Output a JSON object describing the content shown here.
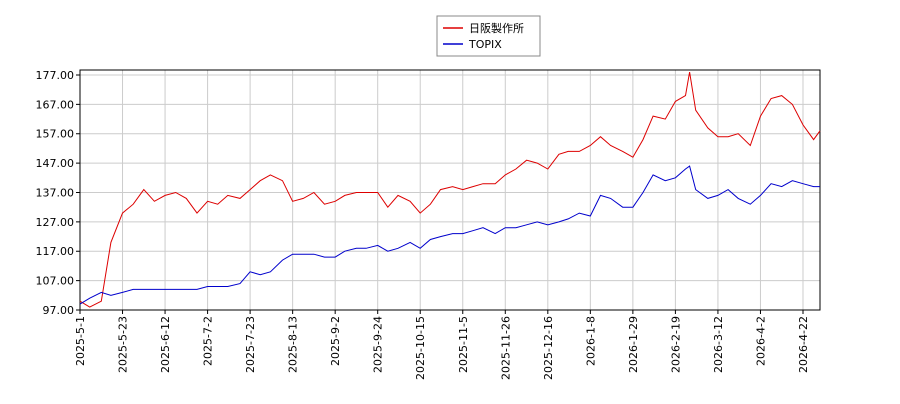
{
  "chart_data": {
    "type": "line",
    "x": [
      "2025-5-1",
      "2025-5-6",
      "2025-5-12",
      "2025-5-17",
      "2025-5-23",
      "2025-5-28",
      "2025-6-2",
      "2025-6-7",
      "2025-6-12",
      "2025-6-17",
      "2025-6-22",
      "2025-6-27",
      "2025-7-2",
      "2025-7-7",
      "2025-7-12",
      "2025-7-18",
      "2025-7-23",
      "2025-7-28",
      "2025-8-2",
      "2025-8-8",
      "2025-8-13",
      "2025-8-18",
      "2025-8-23",
      "2025-8-28",
      "2025-9-2",
      "2025-9-7",
      "2025-9-13",
      "2025-9-18",
      "2025-9-24",
      "2025-9-29",
      "2025-10-4",
      "2025-10-10",
      "2025-10-15",
      "2025-10-20",
      "2025-10-25",
      "2025-10-31",
      "2025-11-5",
      "2025-11-10",
      "2025-11-15",
      "2025-11-21",
      "2025-11-26",
      "2025-12-1",
      "2025-12-6",
      "2025-12-11",
      "2025-12-16",
      "2025-12-22",
      "2025-12-27",
      "2026-1-2",
      "2026-1-8",
      "2026-1-13",
      "2026-1-18",
      "2026-1-24",
      "2026-1-29",
      "2026-2-3",
      "2026-2-8",
      "2026-2-14",
      "2026-2-19",
      "2026-2-24",
      "2026-2-26",
      "2026-3-1",
      "2026-3-7",
      "2026-3-12",
      "2026-3-17",
      "2026-3-22",
      "2026-3-28",
      "2026-4-2",
      "2026-4-7",
      "2026-4-12",
      "2026-4-17",
      "2026-4-22",
      "2026-4-27",
      "2026-4-30"
    ],
    "series": [
      {
        "name": "日阪製作所",
        "color": "#dd0000",
        "values": [
          100,
          98,
          100,
          120,
          130,
          133,
          138,
          134,
          136,
          137,
          135,
          130,
          134,
          133,
          136,
          135,
          138,
          141,
          143,
          141,
          134,
          135,
          137,
          133,
          134,
          136,
          137,
          137,
          137,
          132,
          136,
          134,
          130,
          133,
          138,
          139,
          138,
          139,
          140,
          140,
          143,
          145,
          148,
          147,
          145,
          150,
          151,
          151,
          153,
          156,
          153,
          151,
          149,
          155,
          163,
          162,
          168,
          170,
          178,
          165,
          159,
          156,
          156,
          157,
          153,
          163,
          169,
          170,
          167,
          160,
          155,
          158
        ]
      },
      {
        "name": "TOPIX",
        "color": "#0000cc",
        "values": [
          99,
          101,
          103,
          102,
          103,
          104,
          104,
          104,
          104,
          104,
          104,
          104,
          105,
          105,
          105,
          106,
          110,
          109,
          110,
          114,
          116,
          116,
          116,
          115,
          115,
          117,
          118,
          118,
          119,
          117,
          118,
          120,
          118,
          121,
          122,
          123,
          123,
          124,
          125,
          123,
          125,
          125,
          126,
          127,
          126,
          127,
          128,
          130,
          129,
          136,
          135,
          132,
          132,
          137,
          143,
          141,
          142,
          145,
          146,
          138,
          135,
          136,
          138,
          135,
          133,
          136,
          140,
          139,
          141,
          140,
          139,
          139
        ]
      }
    ],
    "xticks": [
      "2025-5-1",
      "2025-5-23",
      "2025-6-12",
      "2025-7-2",
      "2025-7-23",
      "2025-8-13",
      "2025-9-2",
      "2025-9-24",
      "2025-10-15",
      "2025-11-5",
      "2025-11-26",
      "2025-12-16",
      "2026-1-8",
      "2026-1-29",
      "2026-2-19",
      "2026-3-12",
      "2026-4-2",
      "2026-4-22"
    ],
    "ylim": [
      97,
      178.7
    ],
    "yticks": [
      {
        "value": 97,
        "label": "97.00"
      },
      {
        "value": 107,
        "label": "107.00"
      },
      {
        "value": 117,
        "label": "117.00"
      },
      {
        "value": 127,
        "label": "127.00"
      },
      {
        "value": 137,
        "label": "137.00"
      },
      {
        "value": 147,
        "label": "147.00"
      },
      {
        "value": 157,
        "label": "157.00"
      },
      {
        "value": 167,
        "label": "167.00"
      },
      {
        "value": 177,
        "label": "177.00"
      }
    ],
    "grid": true,
    "legend": "top"
  }
}
